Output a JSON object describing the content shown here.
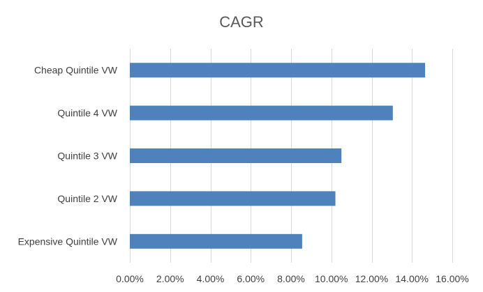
{
  "chart_data": {
    "type": "bar",
    "orientation": "horizontal",
    "title": "CAGR",
    "categories": [
      "Cheap Quintile VW",
      "Quintile 4 VW",
      "Quintile 3 VW",
      "Quintile 2 VW",
      "Expensive Quintile VW"
    ],
    "values": [
      14.65,
      13.05,
      10.5,
      10.2,
      8.55
    ],
    "xlim": [
      0,
      16
    ],
    "x_ticks": [
      "0.00%",
      "2.00%",
      "4.00%",
      "6.00%",
      "8.00%",
      "10.00%",
      "12.00%",
      "14.00%",
      "16.00%"
    ],
    "grid": "vertical",
    "legend": "none",
    "bar_color": "#4f81bd",
    "grid_color": "#d9d9d9"
  }
}
